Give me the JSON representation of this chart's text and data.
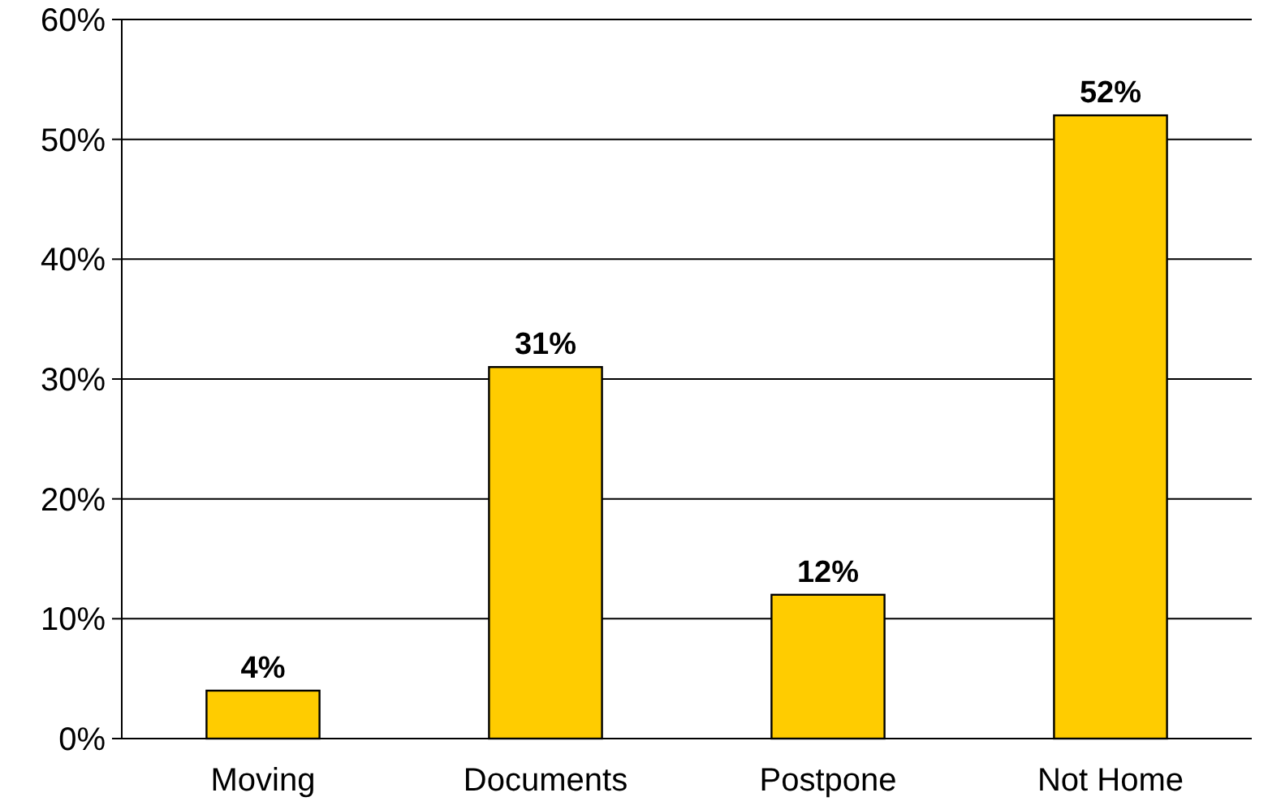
{
  "chart_data": {
    "type": "bar",
    "categories": [
      "Moving",
      "Documents",
      "Postpone",
      "Not Home"
    ],
    "values": [
      4,
      31,
      12,
      52
    ],
    "color": "#ffcc00",
    "value_labels": [
      "4%",
      "31%",
      "12%",
      "52%"
    ],
    "ylim": [
      0,
      60
    ],
    "yticks": [
      {
        "value": 0,
        "label": "0%"
      },
      {
        "value": 10,
        "label": "10%"
      },
      {
        "value": 20,
        "label": "20%"
      },
      {
        "value": 30,
        "label": "30%"
      },
      {
        "value": 40,
        "label": "40%"
      },
      {
        "value": 50,
        "label": "50%"
      },
      {
        "value": 60,
        "label": "60%"
      }
    ],
    "grid": "y"
  }
}
